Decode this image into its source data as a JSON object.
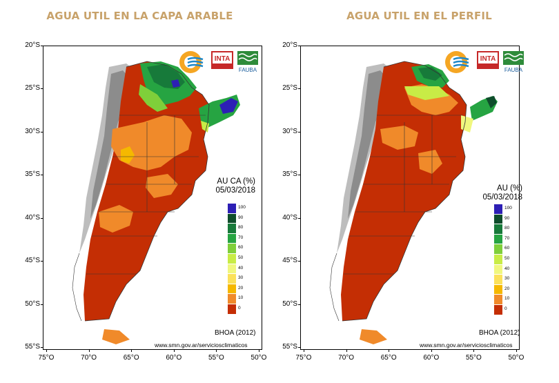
{
  "panels": [
    {
      "title": "AGUA UTIL EN LA CAPA ARABLE",
      "legend_title_line1": "AU CA (%)",
      "legend_title_line2": "05/03/2018"
    },
    {
      "title": "AGUA UTIL EN EL PERFIL",
      "legend_title_line1": "AU (%)",
      "legend_title_line2": "05/03/2018"
    }
  ],
  "legend": {
    "levels": [
      "100",
      "90",
      "80",
      "70",
      "60",
      "50",
      "40",
      "30",
      "20",
      "10",
      "0"
    ],
    "colors": [
      "#2d1fb5",
      "#0e4d2b",
      "#177a3a",
      "#26a442",
      "#7fcf3a",
      "#c8ec46",
      "#f0f77e",
      "#fbe15a",
      "#f5b800",
      "#f08a2a",
      "#c42e04"
    ]
  },
  "axes": {
    "lat_labels": [
      "20°S",
      "25°S",
      "30°S",
      "35°S",
      "40°S",
      "45°S",
      "50°S",
      "55°S"
    ],
    "lon_labels": [
      "75°O",
      "70°O",
      "65°O",
      "60°O",
      "55°O",
      "50°O"
    ]
  },
  "source_text": "BHOA (2012)",
  "credit_text": "www.smn.gov.ar/serviciosclimaticos",
  "logos": {
    "inta": "INTA",
    "fauba": "FAUBA"
  },
  "colors": {
    "title": "#c8a26a",
    "dry": "#c42e04",
    "low": "#f08a2a",
    "andes": "#a8a8a8"
  }
}
